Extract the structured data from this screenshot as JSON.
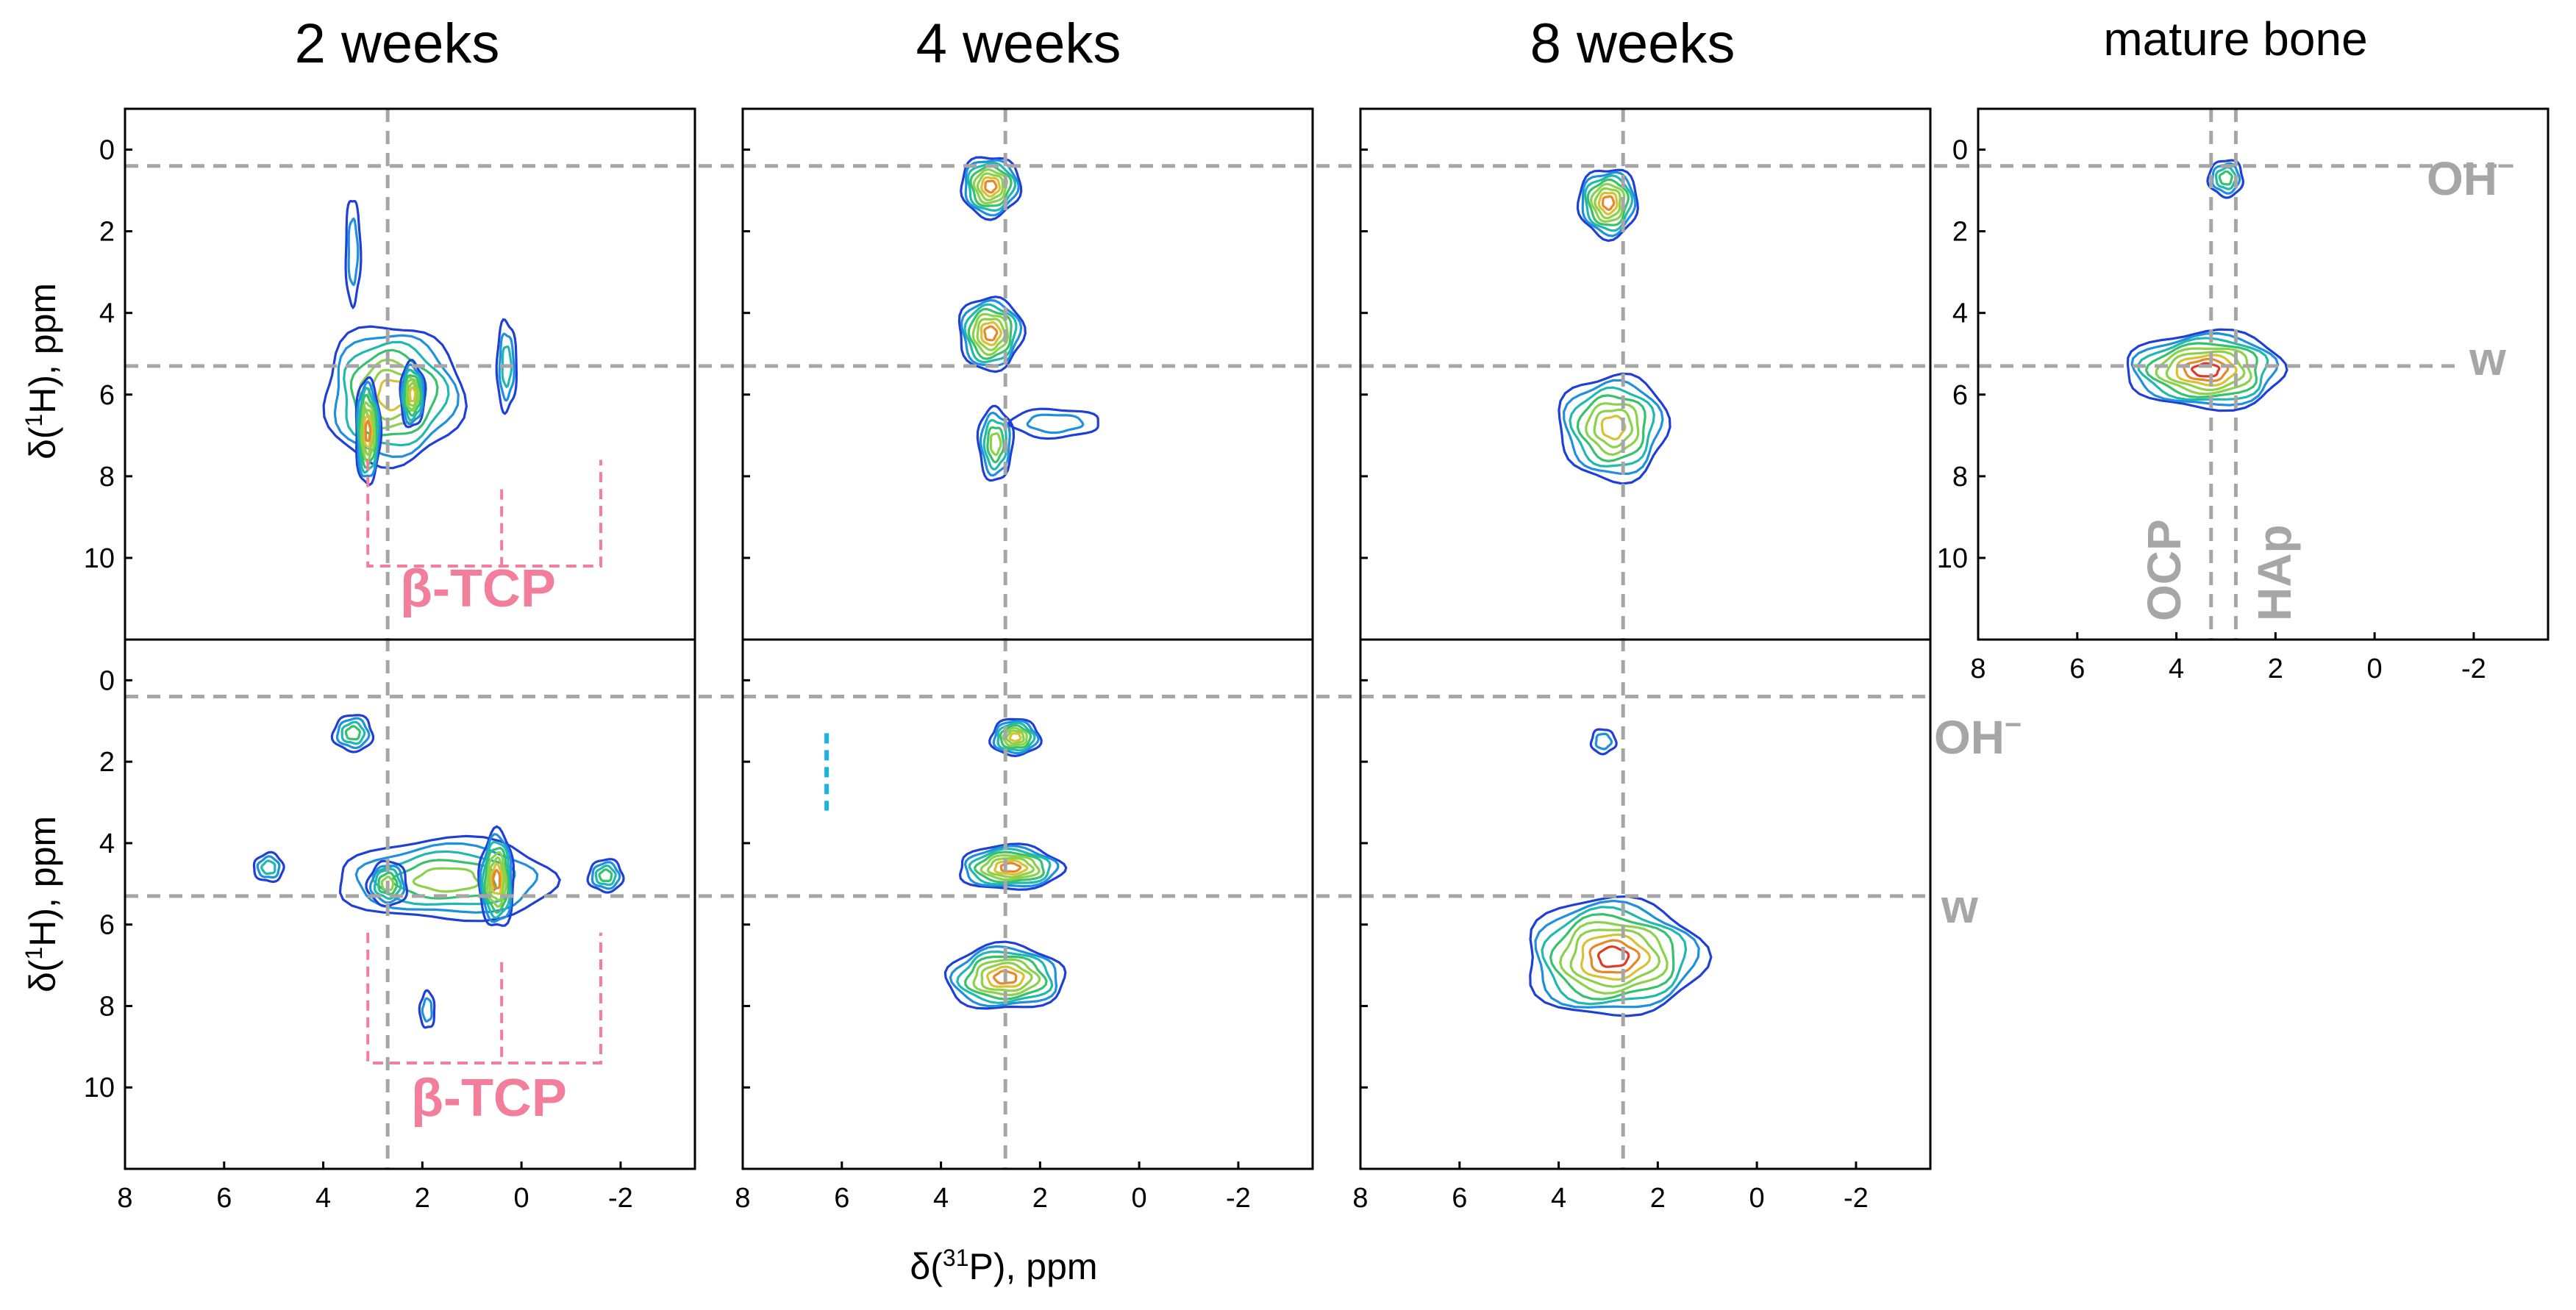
{
  "colors": {
    "guide": "#a6a6a6",
    "beta_tcp": "#f27e9b",
    "marker": "#19b3e6",
    "contour_ramp": [
      "#1f3fd9",
      "#1f8fe0",
      "#21b8b0",
      "#35c26a",
      "#8bd14a",
      "#d6c233",
      "#e8862a",
      "#e03a26"
    ]
  },
  "chart_data": {
    "type": "contour",
    "description": "2D 31P-1H correlation NMR spectra, contour plots",
    "x_axis": {
      "label_prefix": "δ(",
      "label_sup": "31",
      "label_suffix": "P), ppm",
      "range": [
        8,
        -3.5
      ],
      "ticks": [
        "8",
        "6",
        "4",
        "2",
        "0",
        "-2"
      ]
    },
    "y_axis": {
      "label_prefix": "δ(",
      "label_sup": "1",
      "label_suffix": "H), ppm",
      "range": [
        -1,
        12
      ],
      "ticks": [
        "0",
        "2",
        "4",
        "6",
        "8",
        "10"
      ]
    },
    "column_titles": [
      "2 weeks",
      "4 weeks",
      "8 weeks",
      "mature bone"
    ],
    "reference_lines": {
      "OH": {
        "label": "OH",
        "label_sup": "−",
        "y_ppm": 0.4
      },
      "w": {
        "label": "w",
        "y_ppm": 5.3
      },
      "OCP": {
        "label": "OCP",
        "x_ppm": 3.3
      },
      "HAp": {
        "label": "HAp",
        "x_ppm": 2.8
      },
      "column_x_ppm": 2.7
    },
    "beta_tcp": {
      "label": "β-TCP",
      "x_ppm": [
        3.1,
        0.4,
        -1.6
      ]
    },
    "panels": [
      {
        "row": 0,
        "col": 0,
        "peaks": [
          {
            "x": 2.6,
            "y": 6.0,
            "sx": 1.4,
            "sy": 1.7,
            "levels": 7
          },
          {
            "x": 3.1,
            "y": 6.9,
            "sx": 0.25,
            "sy": 1.3,
            "levels": 8
          },
          {
            "x": 2.2,
            "y": 6.0,
            "sx": 0.25,
            "sy": 0.8,
            "levels": 7
          },
          {
            "x": 0.3,
            "y": 5.3,
            "sx": 0.2,
            "sy": 1.1,
            "levels": 3
          },
          {
            "x": 3.4,
            "y": 2.5,
            "sx": 0.15,
            "sy": 1.3,
            "levels": 2
          }
        ]
      },
      {
        "row": 0,
        "col": 1,
        "peaks": [
          {
            "x": 3.0,
            "y": 0.9,
            "sx": 0.6,
            "sy": 0.75,
            "levels": 8
          },
          {
            "x": 3.0,
            "y": 4.5,
            "sx": 0.65,
            "sy": 0.9,
            "levels": 8
          },
          {
            "x": 2.9,
            "y": 7.2,
            "sx": 0.35,
            "sy": 0.9,
            "levels": 5
          },
          {
            "x": 1.7,
            "y": 6.7,
            "sx": 0.9,
            "sy": 0.35,
            "levels": 2
          }
        ]
      },
      {
        "row": 0,
        "col": 2,
        "peaks": [
          {
            "x": 3.0,
            "y": 1.3,
            "sx": 0.6,
            "sy": 0.85,
            "levels": 8
          },
          {
            "x": 2.9,
            "y": 6.8,
            "sx": 1.1,
            "sy": 1.3,
            "levels": 7
          }
        ]
      },
      {
        "row": 0,
        "col": 3,
        "peaks": [
          {
            "x": 3.0,
            "y": 0.7,
            "sx": 0.35,
            "sy": 0.45,
            "levels": 4
          },
          {
            "x": 3.4,
            "y": 5.4,
            "sx": 1.6,
            "sy": 0.95,
            "levels": 9
          }
        ]
      },
      {
        "row": 1,
        "col": 0,
        "peaks": [
          {
            "x": 3.4,
            "y": 1.3,
            "sx": 0.4,
            "sy": 0.45,
            "levels": 4
          },
          {
            "x": 1.5,
            "y": 4.9,
            "sx": 2.2,
            "sy": 1.0,
            "levels": 5
          },
          {
            "x": 0.5,
            "y": 4.9,
            "sx": 0.35,
            "sy": 1.2,
            "levels": 8
          },
          {
            "x": 2.7,
            "y": 5.0,
            "sx": 0.4,
            "sy": 0.55,
            "levels": 5
          },
          {
            "x": -1.7,
            "y": 4.8,
            "sx": 0.35,
            "sy": 0.4,
            "levels": 4
          },
          {
            "x": 5.1,
            "y": 4.6,
            "sx": 0.3,
            "sy": 0.35,
            "levels": 3
          },
          {
            "x": 1.9,
            "y": 8.1,
            "sx": 0.15,
            "sy": 0.45,
            "levels": 2
          }
        ]
      },
      {
        "row": 1,
        "col": 1,
        "peaks": [
          {
            "x": 2.5,
            "y": 1.4,
            "sx": 0.5,
            "sy": 0.45,
            "levels": 7
          },
          {
            "x": 2.6,
            "y": 4.6,
            "sx": 1.05,
            "sy": 0.55,
            "levels": 8
          },
          {
            "x": 2.7,
            "y": 7.3,
            "sx": 1.2,
            "sy": 0.8,
            "levels": 8
          }
        ]
      },
      {
        "row": 1,
        "col": 2,
        "peaks": [
          {
            "x": 3.1,
            "y": 1.5,
            "sx": 0.25,
            "sy": 0.3,
            "levels": 2
          },
          {
            "x": 2.9,
            "y": 6.8,
            "sx": 1.8,
            "sy": 1.45,
            "levels": 9
          }
        ]
      }
    ]
  }
}
